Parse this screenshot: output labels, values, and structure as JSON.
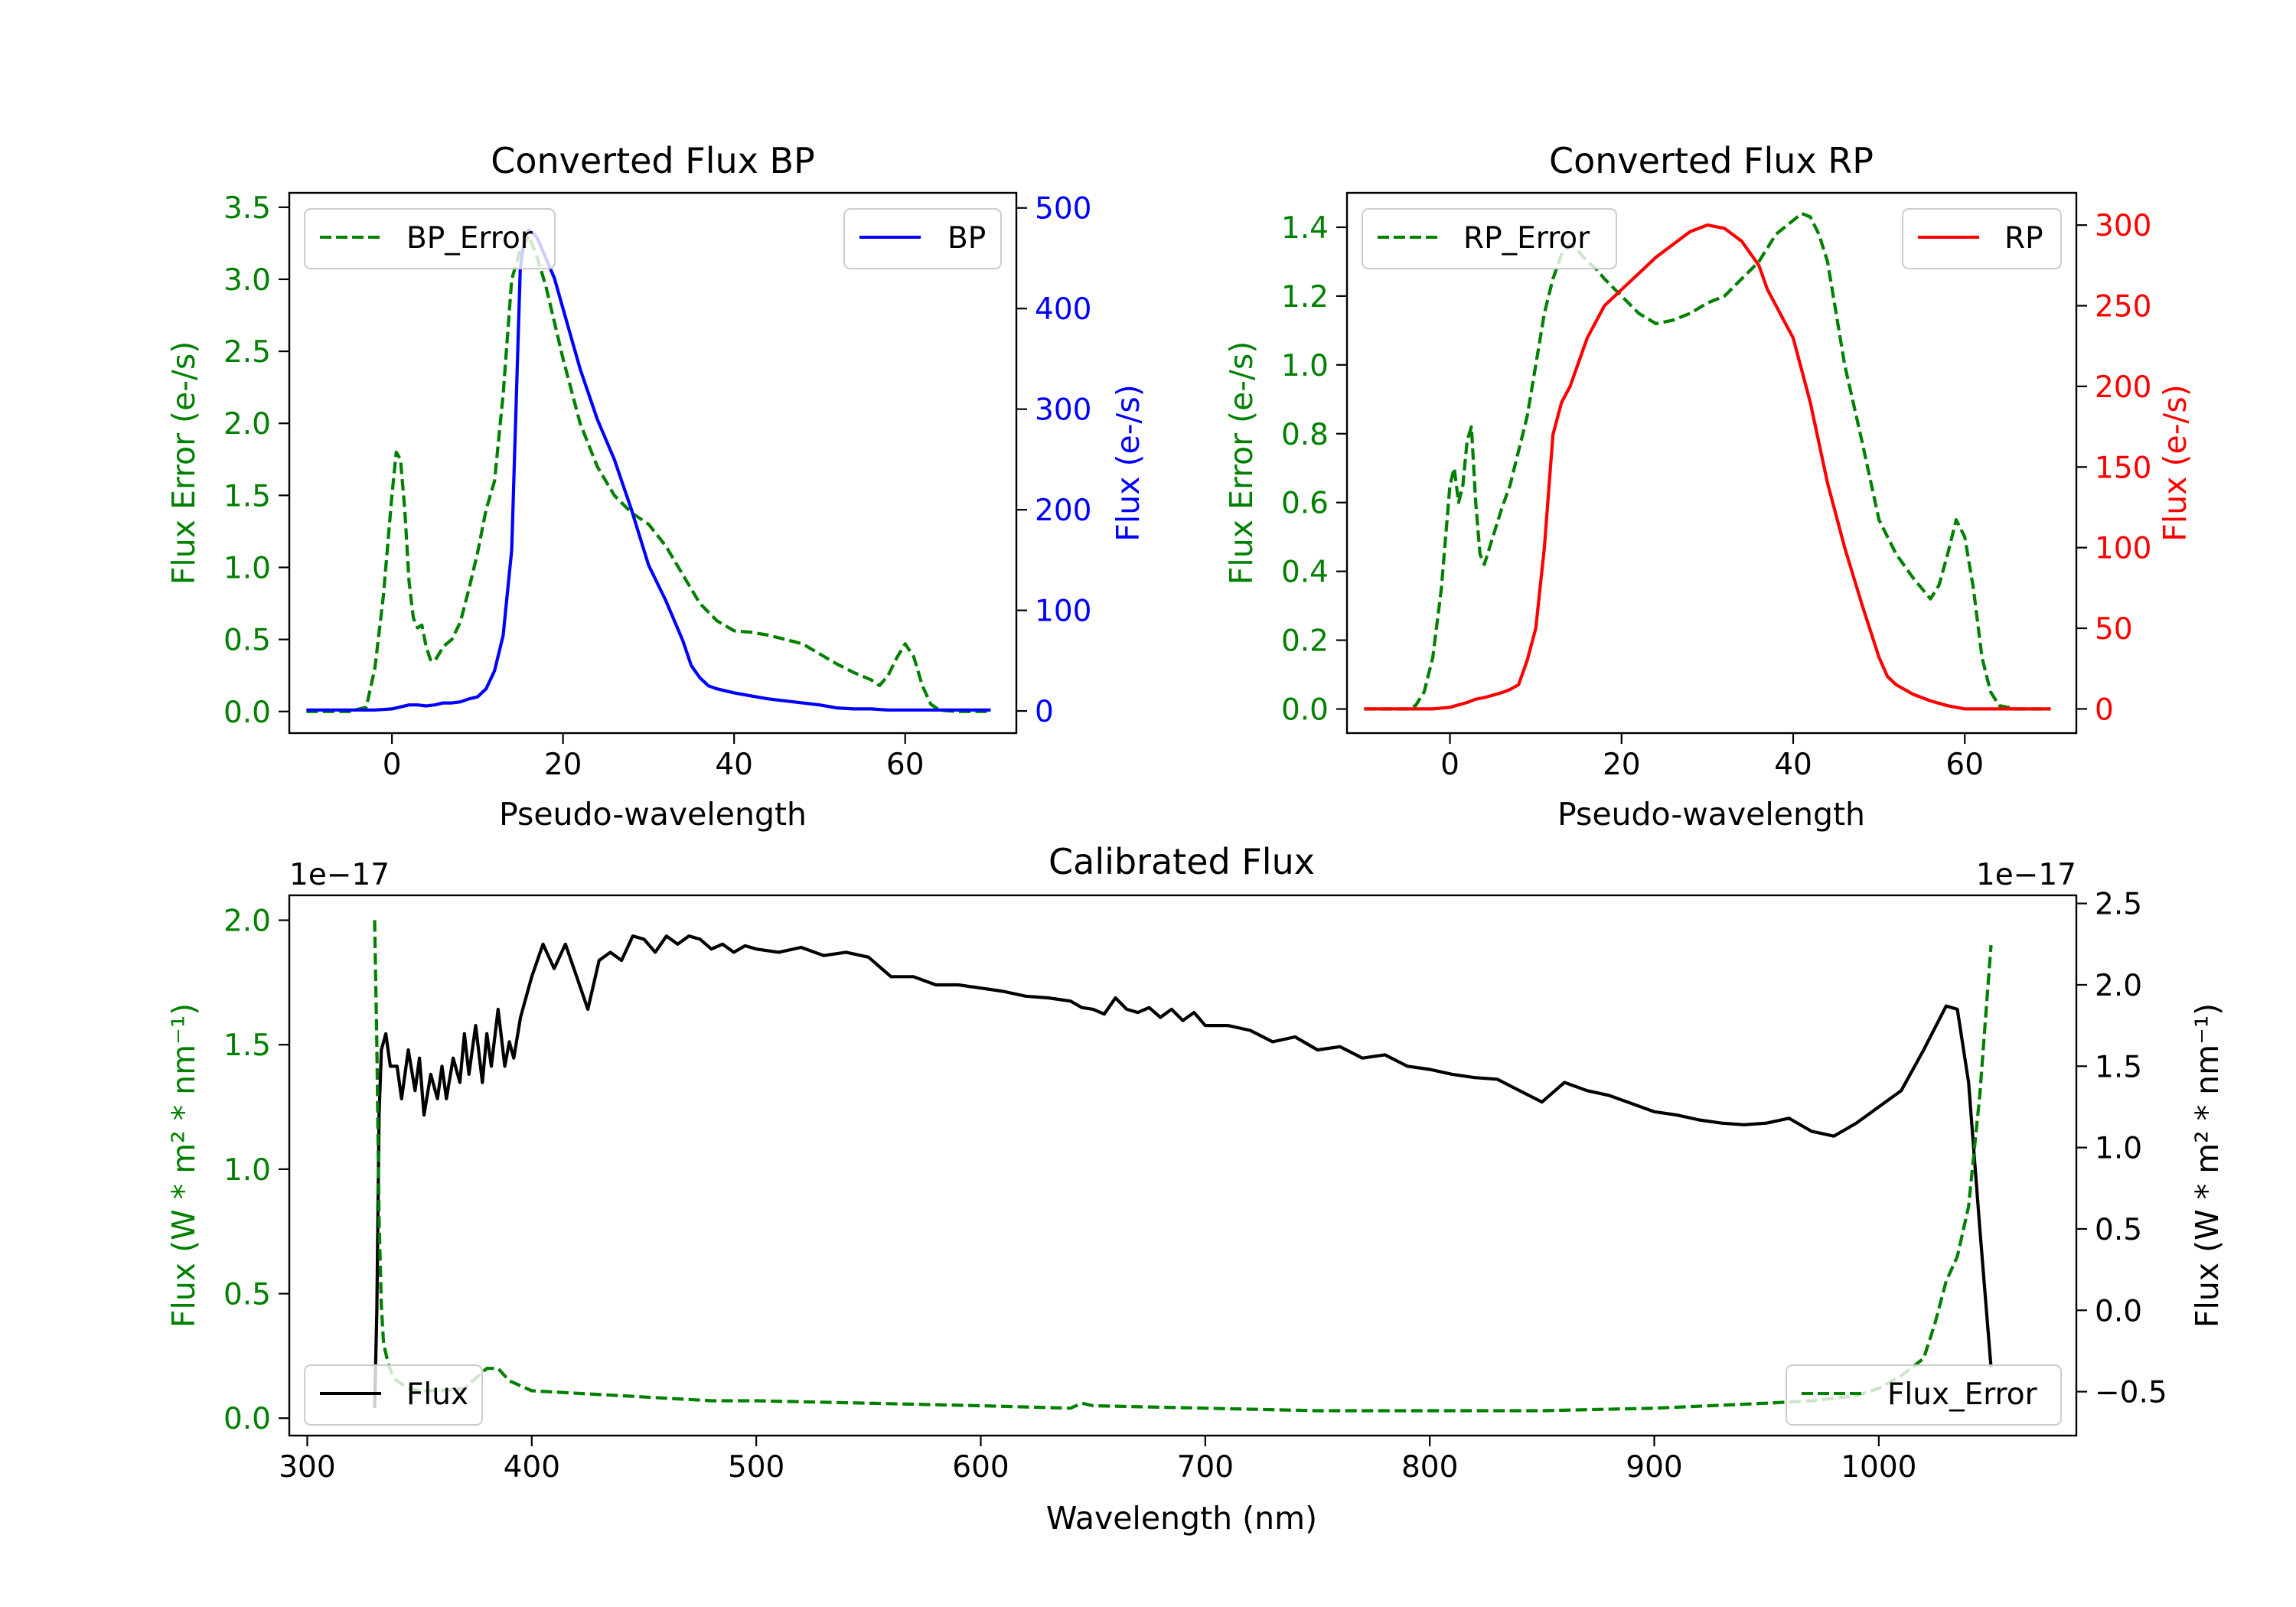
{
  "colors": {
    "green": "#008000",
    "blue": "#0000ff",
    "red": "#ff0000",
    "black": "#000000"
  },
  "chart_data": [
    {
      "id": "bp",
      "type": "line",
      "title": "Converted Flux BP",
      "xlabel": "Pseudo-wavelength",
      "xlim": [
        -12,
        73
      ],
      "xticks": [
        0,
        20,
        40,
        60
      ],
      "xtick_labels": [
        "0",
        "20",
        "40",
        "60"
      ],
      "left_axis": {
        "label": "Flux Error (e-/s)",
        "color": "#008000",
        "lim": [
          -0.15,
          3.6
        ],
        "ticks": [
          0,
          0.5,
          1.0,
          1.5,
          2.0,
          2.5,
          3.0,
          3.5
        ],
        "tick_labels": [
          "0.0",
          "0.5",
          "1.0",
          "1.5",
          "2.0",
          "2.5",
          "3.0",
          "3.5"
        ]
      },
      "right_axis": {
        "label": "Flux (e-/s)",
        "color": "#0000ff",
        "lim": [
          -22,
          515
        ],
        "ticks": [
          0,
          100,
          200,
          300,
          400,
          500
        ],
        "tick_labels": [
          "0",
          "100",
          "200",
          "300",
          "400",
          "500"
        ]
      },
      "series": [
        {
          "name": "BP_Error",
          "axis": "left",
          "color": "#008000",
          "dash": true,
          "x": [
            -10,
            -5,
            -3,
            -2,
            -1,
            0,
            0.5,
            1,
            1.5,
            2,
            2.5,
            3,
            3.5,
            4,
            4.5,
            5,
            5.5,
            6,
            7,
            8,
            9,
            10,
            11,
            12,
            13,
            14,
            15,
            16,
            17,
            18,
            19,
            20,
            22,
            24,
            26,
            28,
            30,
            32,
            34,
            36,
            38,
            40,
            42,
            44,
            46,
            48,
            50,
            52,
            54,
            56,
            57,
            58,
            59,
            60,
            61,
            62,
            63,
            64,
            66,
            68,
            70
          ],
          "values": [
            0.0,
            0.0,
            0.03,
            0.3,
            0.8,
            1.5,
            1.8,
            1.75,
            1.4,
            0.9,
            0.65,
            0.58,
            0.6,
            0.45,
            0.36,
            0.35,
            0.4,
            0.45,
            0.5,
            0.62,
            0.85,
            1.1,
            1.4,
            1.6,
            2.2,
            3.0,
            3.2,
            3.3,
            3.15,
            2.95,
            2.7,
            2.45,
            2.0,
            1.7,
            1.5,
            1.38,
            1.3,
            1.15,
            0.95,
            0.75,
            0.63,
            0.56,
            0.55,
            0.53,
            0.5,
            0.47,
            0.4,
            0.33,
            0.27,
            0.22,
            0.18,
            0.25,
            0.37,
            0.47,
            0.38,
            0.18,
            0.05,
            0.01,
            0.0,
            0.0,
            0.0
          ]
        },
        {
          "name": "BP",
          "axis": "right",
          "color": "#0000ff",
          "dash": false,
          "x": [
            -10,
            -5,
            -2,
            0,
            1,
            2,
            3,
            4,
            5,
            6,
            7,
            8,
            9,
            10,
            11,
            12,
            13,
            14,
            14.5,
            15,
            15.5,
            16,
            16.5,
            17,
            18,
            19,
            20,
            22,
            24,
            26,
            28,
            30,
            32,
            34,
            35,
            36,
            37,
            38,
            40,
            42,
            44,
            46,
            48,
            50,
            52,
            54,
            56,
            58,
            60,
            62,
            64,
            66,
            68,
            70
          ],
          "values": [
            1,
            1,
            1,
            2,
            4,
            6,
            6,
            5,
            6,
            8,
            8,
            9,
            12,
            14,
            22,
            40,
            75,
            160,
            300,
            440,
            470,
            478,
            475,
            470,
            450,
            430,
            400,
            340,
            290,
            250,
            200,
            145,
            110,
            70,
            45,
            33,
            25,
            22,
            18,
            15,
            12,
            10,
            8,
            6,
            3,
            2,
            2,
            1,
            1,
            1,
            1,
            1,
            1,
            1
          ]
        }
      ]
    },
    {
      "id": "rp",
      "type": "line",
      "title": "Converted Flux RP",
      "xlabel": "Pseudo-wavelength",
      "xlim": [
        -12,
        73
      ],
      "xticks": [
        0,
        20,
        40,
        60
      ],
      "xtick_labels": [
        "0",
        "20",
        "40",
        "60"
      ],
      "left_axis": {
        "label": "Flux Error (e-/s)",
        "color": "#008000",
        "lim": [
          -0.07,
          1.5
        ],
        "ticks": [
          0,
          0.2,
          0.4,
          0.6,
          0.8,
          1.0,
          1.2,
          1.4
        ],
        "tick_labels": [
          "0.0",
          "0.2",
          "0.4",
          "0.6",
          "0.8",
          "1.0",
          "1.2",
          "1.4"
        ]
      },
      "right_axis": {
        "label": "Flux (e-/s)",
        "color": "#ff0000",
        "lim": [
          -15,
          320
        ],
        "ticks": [
          0,
          50,
          100,
          150,
          200,
          250,
          300
        ],
        "tick_labels": [
          "0",
          "50",
          "100",
          "150",
          "200",
          "250",
          "300"
        ]
      },
      "series": [
        {
          "name": "RP_Error",
          "axis": "left",
          "color": "#008000",
          "dash": true,
          "x": [
            -10,
            -5,
            -4,
            -3,
            -2,
            -1,
            0,
            0.5,
            1,
            1.5,
            2,
            2.5,
            3,
            3.5,
            4,
            5,
            6,
            7,
            8,
            9,
            10,
            11,
            12,
            13,
            14,
            15,
            16,
            17,
            18,
            20,
            22,
            24,
            26,
            28,
            30,
            32,
            34,
            36,
            38,
            40,
            41,
            42,
            43,
            44,
            45,
            46,
            48,
            50,
            52,
            54,
            56,
            57,
            58,
            59,
            60,
            61,
            62,
            63,
            64,
            66,
            68,
            70
          ],
          "values": [
            0.0,
            0.0,
            0.01,
            0.05,
            0.15,
            0.35,
            0.65,
            0.7,
            0.6,
            0.65,
            0.78,
            0.82,
            0.6,
            0.45,
            0.42,
            0.5,
            0.58,
            0.65,
            0.75,
            0.85,
            1.0,
            1.15,
            1.25,
            1.32,
            1.35,
            1.33,
            1.3,
            1.28,
            1.25,
            1.2,
            1.15,
            1.12,
            1.13,
            1.15,
            1.18,
            1.2,
            1.25,
            1.3,
            1.38,
            1.42,
            1.44,
            1.43,
            1.38,
            1.3,
            1.15,
            1.0,
            0.78,
            0.55,
            0.45,
            0.38,
            0.32,
            0.36,
            0.45,
            0.55,
            0.5,
            0.35,
            0.15,
            0.05,
            0.01,
            0.0,
            0.0,
            0.0
          ]
        },
        {
          "name": "RP",
          "axis": "right",
          "color": "#ff0000",
          "dash": false,
          "x": [
            -10,
            -5,
            -2,
            0,
            2,
            3,
            4,
            6,
            7,
            8,
            9,
            10,
            11,
            12,
            13,
            14,
            15,
            16,
            17,
            18,
            19,
            20,
            22,
            24,
            26,
            28,
            30,
            32,
            34,
            36,
            37,
            38,
            39,
            40,
            42,
            44,
            46,
            48,
            50,
            51,
            52,
            54,
            56,
            58,
            60,
            62,
            64,
            66,
            68,
            70
          ],
          "values": [
            0,
            0,
            0,
            1,
            4,
            6,
            7,
            10,
            12,
            15,
            30,
            50,
            100,
            170,
            190,
            200,
            215,
            230,
            240,
            250,
            255,
            260,
            270,
            280,
            288,
            296,
            300,
            298,
            290,
            275,
            260,
            250,
            240,
            230,
            190,
            140,
            100,
            65,
            32,
            20,
            15,
            9,
            5,
            2,
            0,
            0,
            0,
            0,
            0,
            0
          ]
        }
      ]
    },
    {
      "id": "cal",
      "type": "line",
      "title": "Calibrated Flux",
      "xlabel": "Wavelength (nm)",
      "xlim": [
        292,
        1088
      ],
      "xticks": [
        300,
        400,
        500,
        600,
        700,
        800,
        900,
        1000
      ],
      "xtick_labels": [
        "300",
        "400",
        "500",
        "600",
        "700",
        "800",
        "900",
        "1000"
      ],
      "left_axis": {
        "label": "Flux (W * m² * nm⁻¹)",
        "color": "#008000",
        "lim": [
          -0.07,
          2.1
        ],
        "offset_text": "1e−17",
        "ticks": [
          0,
          0.5,
          1.0,
          1.5,
          2.0
        ],
        "tick_labels": [
          "0.0",
          "0.5",
          "1.0",
          "1.5",
          "2.0"
        ]
      },
      "right_axis": {
        "label": "Flux (W * m² * nm⁻¹)",
        "color": "#000000",
        "lim": [
          -0.77,
          2.55
        ],
        "offset_text": "1e−17",
        "ticks": [
          -0.5,
          0,
          0.5,
          1.0,
          1.5,
          2.0,
          2.5
        ],
        "tick_labels": [
          "−0.5",
          "0.0",
          "0.5",
          "1.0",
          "1.5",
          "2.0",
          "2.5"
        ]
      },
      "series": [
        {
          "name": "Flux",
          "axis": "right",
          "color": "#000000",
          "dash": false,
          "x": [
            330,
            331,
            332,
            333,
            335,
            337,
            340,
            342,
            345,
            348,
            350,
            352,
            355,
            358,
            360,
            362,
            365,
            368,
            370,
            372,
            375,
            378,
            380,
            382,
            385,
            388,
            390,
            392,
            395,
            398,
            400,
            405,
            410,
            415,
            420,
            425,
            430,
            435,
            440,
            445,
            450,
            455,
            460,
            465,
            470,
            475,
            480,
            485,
            490,
            495,
            500,
            510,
            520,
            530,
            540,
            550,
            560,
            570,
            580,
            590,
            600,
            610,
            620,
            630,
            640,
            645,
            650,
            655,
            660,
            665,
            670,
            675,
            680,
            685,
            690,
            695,
            700,
            710,
            720,
            730,
            740,
            750,
            760,
            770,
            780,
            790,
            800,
            810,
            820,
            830,
            840,
            850,
            860,
            870,
            880,
            890,
            900,
            910,
            920,
            930,
            940,
            950,
            960,
            970,
            980,
            990,
            1000,
            1010,
            1020,
            1030,
            1035,
            1040,
            1045,
            1050
          ],
          "values": [
            -0.6,
            0.0,
            1.2,
            1.6,
            1.7,
            1.5,
            1.5,
            1.3,
            1.6,
            1.35,
            1.55,
            1.2,
            1.45,
            1.3,
            1.5,
            1.3,
            1.55,
            1.4,
            1.7,
            1.45,
            1.75,
            1.4,
            1.7,
            1.5,
            1.85,
            1.5,
            1.65,
            1.55,
            1.8,
            1.95,
            2.05,
            2.25,
            2.1,
            2.25,
            2.05,
            1.85,
            2.15,
            2.2,
            2.15,
            2.3,
            2.28,
            2.2,
            2.3,
            2.25,
            2.3,
            2.28,
            2.22,
            2.25,
            2.2,
            2.24,
            2.22,
            2.2,
            2.23,
            2.18,
            2.2,
            2.17,
            2.05,
            2.05,
            2.0,
            2.0,
            1.98,
            1.96,
            1.93,
            1.92,
            1.9,
            1.86,
            1.85,
            1.82,
            1.92,
            1.85,
            1.83,
            1.86,
            1.8,
            1.85,
            1.78,
            1.83,
            1.75,
            1.75,
            1.72,
            1.65,
            1.68,
            1.6,
            1.62,
            1.55,
            1.57,
            1.5,
            1.48,
            1.45,
            1.43,
            1.42,
            1.35,
            1.28,
            1.4,
            1.35,
            1.32,
            1.27,
            1.22,
            1.2,
            1.17,
            1.15,
            1.14,
            1.15,
            1.18,
            1.1,
            1.07,
            1.15,
            1.25,
            1.35,
            1.6,
            1.87,
            1.85,
            1.4,
            0.5,
            -0.35
          ]
        },
        {
          "name": "Flux_Error",
          "axis": "left",
          "color": "#008000",
          "dash": true,
          "x": [
            330,
            331,
            332,
            333,
            334,
            336,
            338,
            340,
            345,
            350,
            360,
            370,
            380,
            385,
            390,
            400,
            420,
            440,
            460,
            480,
            500,
            550,
            600,
            640,
            645,
            650,
            700,
            750,
            800,
            850,
            900,
            950,
            970,
            990,
            1000,
            1010,
            1020,
            1025,
            1030,
            1035,
            1040,
            1045,
            1050
          ],
          "values": [
            2.0,
            1.5,
            0.8,
            0.45,
            0.3,
            0.22,
            0.17,
            0.15,
            0.12,
            0.11,
            0.11,
            0.12,
            0.2,
            0.2,
            0.15,
            0.11,
            0.1,
            0.09,
            0.08,
            0.07,
            0.07,
            0.06,
            0.05,
            0.04,
            0.06,
            0.05,
            0.04,
            0.03,
            0.03,
            0.03,
            0.04,
            0.06,
            0.07,
            0.09,
            0.12,
            0.17,
            0.24,
            0.38,
            0.55,
            0.65,
            0.85,
            1.3,
            1.9
          ]
        }
      ]
    }
  ]
}
